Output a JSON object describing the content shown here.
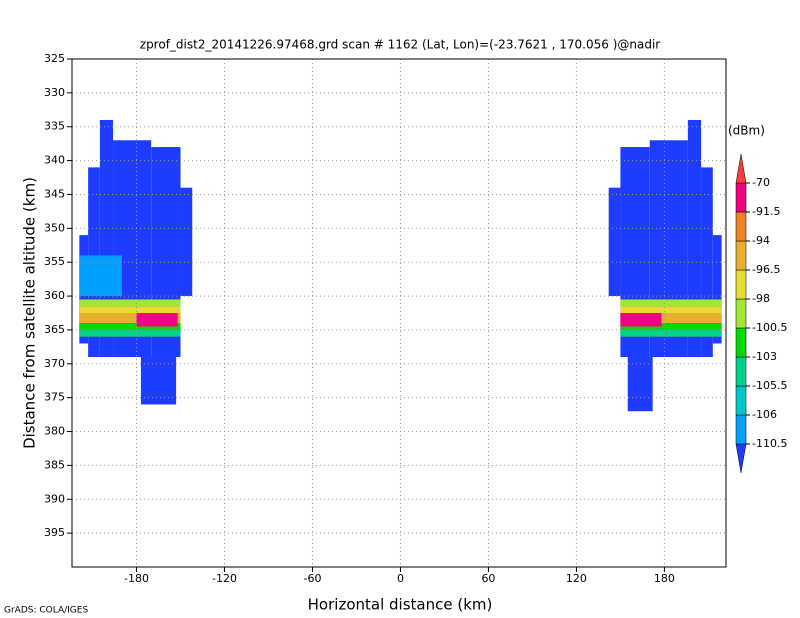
{
  "chart_data": {
    "type": "heatmap",
    "title": "zprof_dist2_20141226.97468.grd  scan # 1162  (Lat, Lon)=(-23.7621 , 170.056 )@nadir",
    "x_label": "Horizontal distance (km)",
    "y_label": "Distance from satellite altitude (km)",
    "credit": "GrADS: COLA/IGES",
    "xlim": [
      -224,
      222
    ],
    "ylim": [
      400,
      325
    ],
    "xticks": [
      -180,
      -120,
      -60,
      0,
      60,
      120,
      180
    ],
    "yticks": [
      325,
      330,
      335,
      340,
      345,
      350,
      355,
      360,
      365,
      370,
      375,
      380,
      385,
      390,
      395
    ],
    "grid": true,
    "colorbar_label": "(dBm)",
    "levels": [
      -110.5,
      -106,
      -105.5,
      -103,
      -100.5,
      -98,
      -96.5,
      -94,
      -91.5,
      -70
    ],
    "colors": [
      "#1e3cff",
      "#00a0ff",
      "#00c8c8",
      "#00d28c",
      "#00dc00",
      "#a0e632",
      "#e6dc32",
      "#e6af2d",
      "#f08228",
      "#f00082",
      "#fa3c3c"
    ],
    "cells": [
      [
        -205,
        -196,
        334,
        369,
        -112
      ],
      [
        -196,
        -170,
        337,
        369,
        -112
      ],
      [
        -170,
        -150,
        338,
        369,
        -112
      ],
      [
        -150,
        -142,
        344,
        360,
        -112
      ],
      [
        -213,
        -205,
        341,
        369,
        -112
      ],
      [
        -219,
        -213,
        351,
        367,
        -112
      ],
      [
        -177,
        -153,
        369,
        376,
        -112
      ],
      [
        -219,
        -190,
        354,
        360,
        -108
      ],
      [
        -219,
        -150,
        360.5,
        361.5,
        -99
      ],
      [
        -219,
        -150,
        361.5,
        362.5,
        -97
      ],
      [
        -219,
        -150,
        362.5,
        364,
        -95
      ],
      [
        -219,
        -150,
        364,
        365,
        -101
      ],
      [
        -219,
        -150,
        365,
        366,
        -105
      ],
      [
        -180,
        -152,
        362.5,
        364.5,
        -80
      ],
      [
        142,
        150,
        344,
        360,
        -112
      ],
      [
        150,
        170,
        338,
        369,
        -112
      ],
      [
        170,
        196,
        337,
        369,
        -112
      ],
      [
        196,
        205,
        334,
        369,
        -112
      ],
      [
        205,
        213,
        341,
        369,
        -112
      ],
      [
        213,
        219,
        351,
        367,
        -112
      ],
      [
        155,
        172,
        369,
        377,
        -112
      ],
      [
        150,
        219,
        360.5,
        361.5,
        -99
      ],
      [
        150,
        219,
        361.5,
        362.5,
        -97
      ],
      [
        150,
        219,
        362.5,
        364,
        -95
      ],
      [
        150,
        219,
        364,
        365,
        -101
      ],
      [
        150,
        219,
        365,
        366,
        -105
      ],
      [
        150,
        178,
        362.5,
        364.5,
        -80
      ]
    ]
  }
}
